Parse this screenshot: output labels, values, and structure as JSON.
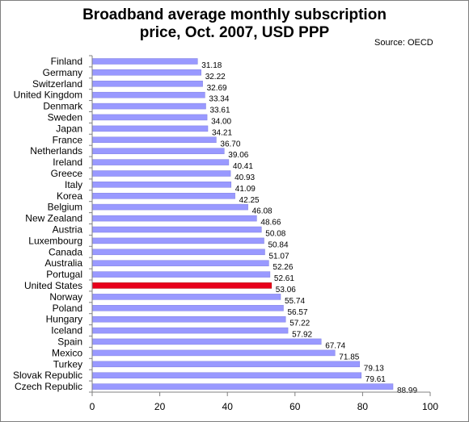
{
  "chart_data": {
    "type": "bar",
    "orientation": "horizontal",
    "title_line1": "Broadband average monthly subscription",
    "title_line2": "price, Oct. 2007, USD PPP",
    "source": "Source: OECD",
    "categories": [
      "Finland",
      "Germany",
      "Switzerland",
      "United Kingdom",
      "Denmark",
      "Sweden",
      "Japan",
      "France",
      "Netherlands",
      "Ireland",
      "Greece",
      "Italy",
      "Korea",
      "Belgium",
      "New Zealand",
      "Austria",
      "Luxembourg",
      "Canada",
      "Australia",
      "Portugal",
      "United States",
      "Norway",
      "Poland",
      "Hungary",
      "Iceland",
      "Spain",
      "Mexico",
      "Turkey",
      "Slovak Republic",
      "Czech Republic"
    ],
    "values": [
      31.18,
      32.22,
      32.69,
      33.34,
      33.61,
      34.0,
      34.21,
      36.7,
      39.06,
      40.41,
      40.93,
      41.09,
      42.25,
      46.08,
      48.66,
      50.08,
      50.84,
      51.07,
      52.26,
      52.61,
      53.06,
      55.74,
      56.57,
      57.22,
      57.92,
      67.74,
      71.85,
      79.13,
      79.61,
      88.99
    ],
    "value_labels": [
      "31.18",
      "32.22",
      "32.69",
      "33.34",
      "33.61",
      "34.00",
      "34.21",
      "36.70",
      "39.06",
      "40.41",
      "40.93",
      "41.09",
      "42.25",
      "46.08",
      "48.66",
      "50.08",
      "50.84",
      "51.07",
      "52.26",
      "52.61",
      "53.06",
      "55.74",
      "56.57",
      "57.22",
      "57.92",
      "67.74",
      "71.85",
      "79.13",
      "79.61",
      "88.99"
    ],
    "highlight_category": "United States",
    "xlim": [
      0,
      100
    ],
    "xticks": [
      "0",
      "20",
      "40",
      "60",
      "80",
      "100"
    ],
    "grid": false,
    "colors": {
      "bar": "#9999ff",
      "bar_edge": "#8080e0",
      "highlight": "#e8001c",
      "axis": "#808080"
    }
  }
}
